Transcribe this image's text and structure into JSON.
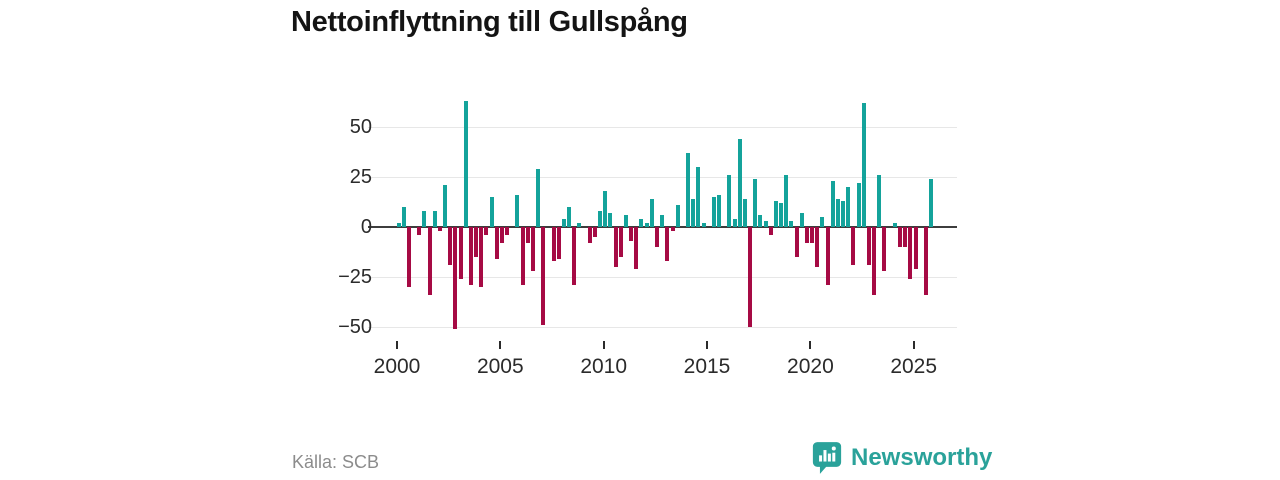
{
  "title": "Nettoinflyttning till Gullspång",
  "source": "Källa: SCB",
  "branding": {
    "name": "Newsworthy",
    "icon": "newsworthy-speech-bubble-bar-chart-icon",
    "color": "#2aa29a"
  },
  "chart_data": {
    "type": "bar",
    "title": "Nettoinflyttning till Gullspång",
    "frequency": "quarterly",
    "start_period": "2000 Q1",
    "end_period": "2025 Q4",
    "x_tick_labels": [
      "2000",
      "2005",
      "2010",
      "2015",
      "2020",
      "2025"
    ],
    "y_tick_labels": [
      "50",
      "25",
      "0",
      "−25",
      "−50"
    ],
    "y_tick_values": [
      50,
      25,
      0,
      -25,
      -50
    ],
    "ylim": [
      -58,
      68
    ],
    "grid": true,
    "legend": false,
    "positive_color": "#14a39b",
    "negative_color": "#a60a44",
    "values": [
      2,
      10,
      -30,
      0,
      -4,
      8,
      -34,
      8,
      -2,
      21,
      -19,
      -51,
      -26,
      63,
      -29,
      -15,
      -30,
      -4,
      15,
      -16,
      -8,
      -4,
      0,
      16,
      -29,
      -8,
      -22,
      29,
      -49,
      0,
      -17,
      -16,
      4,
      10,
      -29,
      2,
      0,
      -8,
      -5,
      8,
      18,
      7,
      -20,
      -15,
      6,
      -7,
      -21,
      4,
      2,
      14,
      -10,
      6,
      -17,
      -2,
      11,
      0,
      37,
      14,
      30,
      2,
      0,
      15,
      16,
      0,
      26,
      4,
      44,
      14,
      -50,
      24,
      6,
      3,
      -4,
      13,
      12,
      26,
      3,
      -15,
      7,
      -8,
      -8,
      -20,
      5,
      -29,
      23,
      14,
      13,
      20,
      -19,
      22,
      62,
      -19,
      -34,
      26,
      -22,
      0,
      2,
      -10,
      -10,
      -26,
      -21,
      0,
      -34,
      24
    ]
  }
}
